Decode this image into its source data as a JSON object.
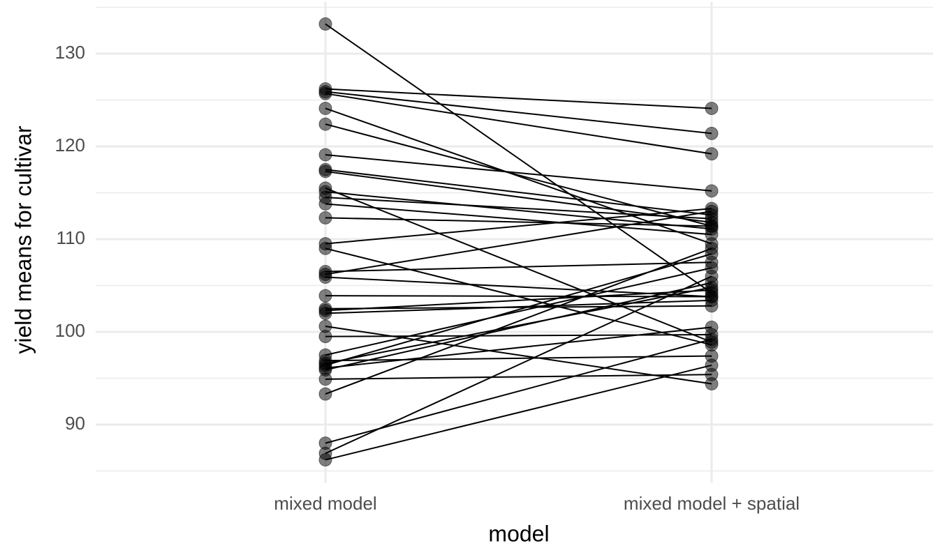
{
  "chart_data": {
    "type": "slope",
    "x_label": "model",
    "y_label": "yield means for cultivar",
    "categories": [
      "mixed model",
      "mixed model + spatial"
    ],
    "ylim": [
      83.7,
      135.6
    ],
    "yticks": [
      90,
      100,
      110,
      120,
      130
    ],
    "minor_yticks": [
      85,
      95,
      105,
      115,
      125,
      135
    ],
    "grid": true,
    "color": "#000000",
    "point_opacity": 0.5,
    "series": [
      {
        "values": [
          133.2,
          104.2
        ]
      },
      {
        "values": [
          126.2,
          124.1
        ]
      },
      {
        "values": [
          125.9,
          121.4
        ]
      },
      {
        "values": [
          125.7,
          119.2
        ]
      },
      {
        "values": [
          124.1,
          109.5
        ]
      },
      {
        "values": [
          122.4,
          111.4
        ]
      },
      {
        "values": [
          119.1,
          115.2
        ]
      },
      {
        "values": [
          117.5,
          112.6
        ]
      },
      {
        "values": [
          117.3,
          111.8
        ]
      },
      {
        "values": [
          115.5,
          98.9
        ]
      },
      {
        "values": [
          115.1,
          111.1
        ]
      },
      {
        "values": [
          114.5,
          112.2
        ]
      },
      {
        "values": [
          113.8,
          110.5
        ]
      },
      {
        "values": [
          112.3,
          111.4
        ]
      },
      {
        "values": [
          109.5,
          113.3
        ]
      },
      {
        "values": [
          109.0,
          98.6
        ]
      },
      {
        "values": [
          106.5,
          107.5
        ]
      },
      {
        "values": [
          106.2,
          113.0
        ]
      },
      {
        "values": [
          105.9,
          103.8
        ]
      },
      {
        "values": [
          103.9,
          103.8
        ]
      },
      {
        "values": [
          102.5,
          102.8
        ]
      },
      {
        "values": [
          102.3,
          104.5
        ]
      },
      {
        "values": [
          102.0,
          103.4
        ]
      },
      {
        "values": [
          100.6,
          94.4
        ]
      },
      {
        "values": [
          99.5,
          99.7
        ]
      },
      {
        "values": [
          97.5,
          106.9
        ]
      },
      {
        "values": [
          96.9,
          97.4
        ]
      },
      {
        "values": [
          96.6,
          104.8
        ]
      },
      {
        "values": [
          96.4,
          108.4
        ]
      },
      {
        "values": [
          96.1,
          100.5
        ]
      },
      {
        "values": [
          95.9,
          105.3
        ]
      },
      {
        "values": [
          94.9,
          95.4
        ]
      },
      {
        "values": [
          93.3,
          109.0
        ]
      },
      {
        "values": [
          88.0,
          99.2
        ]
      },
      {
        "values": [
          86.9,
          106.0
        ]
      },
      {
        "values": [
          86.2,
          96.4
        ]
      }
    ]
  }
}
